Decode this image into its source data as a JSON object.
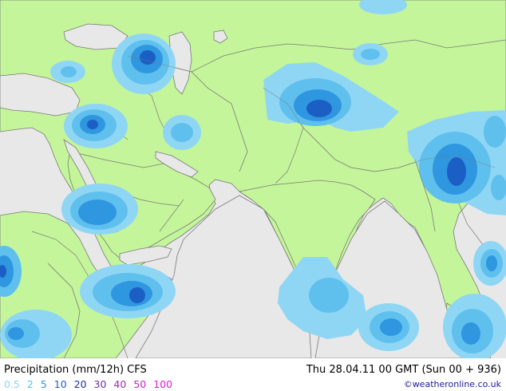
{
  "title": "Precipitation (mm/12h) CFS",
  "datetime": "Thu 28.04.11 00 GMT (Sun 00 + 936)",
  "credit": "©weatheronline.co.uk",
  "legend": [
    {
      "label": "0.5",
      "color": "#8fd6f5"
    },
    {
      "label": "2",
      "color": "#5fc0ee"
    },
    {
      "label": "5",
      "color": "#2f96e0"
    },
    {
      "label": "10",
      "color": "#1b5fc4"
    },
    {
      "label": "20",
      "color": "#1a2ea6"
    },
    {
      "label": "30",
      "color": "#6a2ea6"
    },
    {
      "label": "40",
      "color": "#9b2fb3"
    },
    {
      "label": "50",
      "color": "#c427c4"
    },
    {
      "label": "100",
      "color": "#e61ad6"
    }
  ],
  "colors": {
    "land": "#c4f59a",
    "sea": "#e8e8e8",
    "border": "#7a7a7a"
  }
}
